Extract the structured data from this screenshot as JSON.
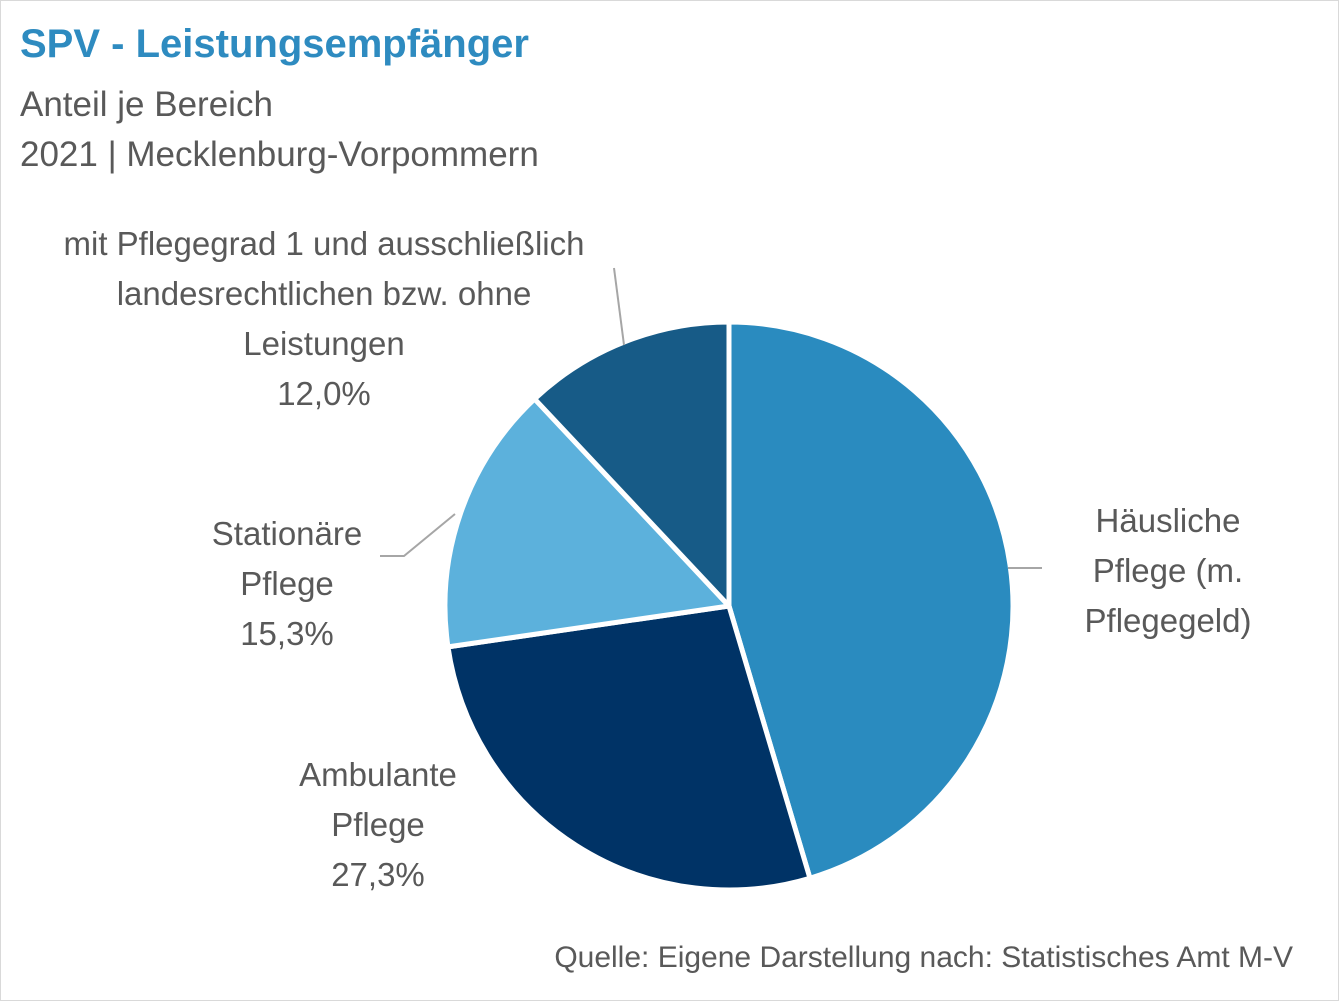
{
  "header": {
    "title": "SPV - Leistungsempfänger",
    "subtitle_line1": "Anteil je Bereich",
    "subtitle_line2": "2021 | Mecklenburg-Vorpommern"
  },
  "footer": {
    "source": "Quelle: Eigene Darstellung nach: Statistisches Amt M-V"
  },
  "colors": {
    "title": "#2e8bc0",
    "text": "#595959",
    "leader": "#a6a6a6"
  },
  "chart_data": {
    "type": "pie",
    "start_angle_deg": 0,
    "direction": "clockwise",
    "slices": [
      {
        "label_lines": [
          "Häusliche",
          "Pflege (m.",
          "Pflegegeld)"
        ],
        "value": 45.4,
        "value_label": "",
        "color": "#2a8bbf"
      },
      {
        "label_lines": [
          "Ambulante",
          "Pflege"
        ],
        "value": 27.3,
        "value_label": "27,3%",
        "color": "#003366"
      },
      {
        "label_lines": [
          "Stationäre",
          "Pflege"
        ],
        "value": 15.3,
        "value_label": "15,3%",
        "color": "#5cb1dc"
      },
      {
        "label_lines": [
          "mit Pflegegrad 1 und ausschließlich",
          "landesrechtlichen bzw. ohne",
          "Leistungen"
        ],
        "value": 12.0,
        "value_label": "12,0%",
        "color": "#175b87"
      }
    ]
  }
}
